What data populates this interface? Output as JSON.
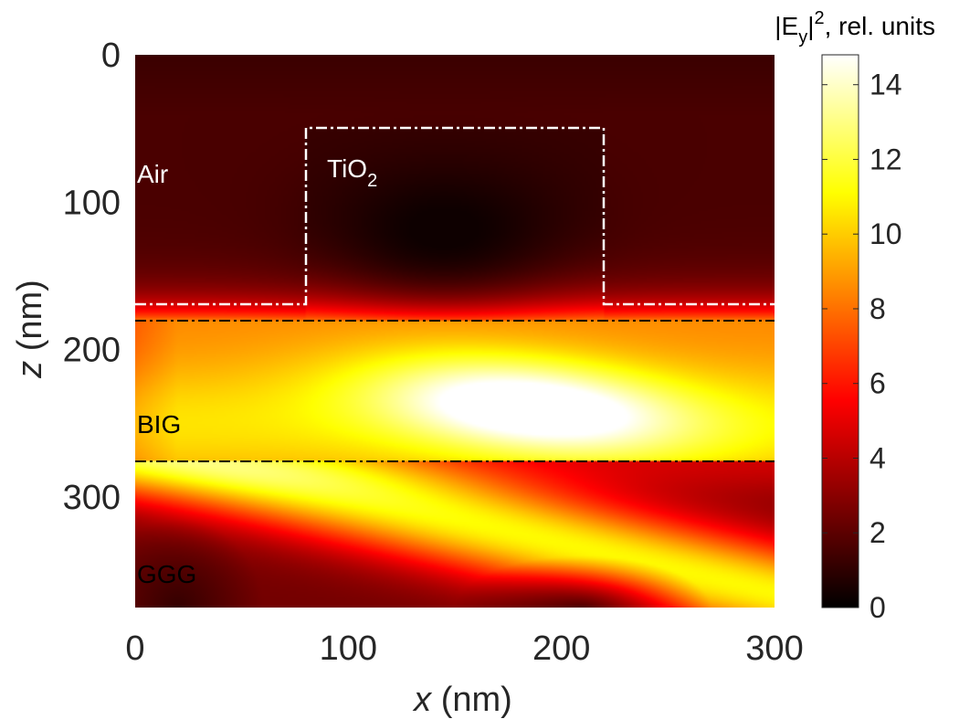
{
  "chart_data": {
    "type": "heatmap",
    "title": "",
    "xlabel": {
      "var": "x",
      "unit": " (nm)"
    },
    "ylabel": {
      "var": "z",
      "unit": " (nm)"
    },
    "xlim": [
      0,
      300
    ],
    "ylim": [
      0,
      375
    ],
    "y_reversed": true,
    "x_ticks": [
      0,
      100,
      200,
      300
    ],
    "y_ticks": [
      0,
      100,
      200,
      300
    ],
    "colorbar": {
      "label_prefix": "|E",
      "label_sub": "y",
      "label_sup": "2",
      "label_suffix": ", rel. units",
      "range": [
        0,
        14.8
      ],
      "ticks": [
        0,
        2,
        4,
        6,
        8,
        10,
        12,
        14
      ],
      "colormap": "hot"
    },
    "layers": [
      {
        "name": "Air",
        "label_text": "Air",
        "z_range": [
          0,
          170
        ],
        "label_at": [
          0,
          80
        ],
        "label_color": "#ffffff"
      },
      {
        "name": "BIG",
        "label_text": "BIG",
        "z_range": [
          180,
          275
        ],
        "label_at": [
          0,
          250
        ],
        "label_color": "#000000"
      },
      {
        "name": "GGG",
        "label_text": "GGG",
        "z_range": [
          275,
          375
        ],
        "label_at": [
          0,
          350
        ],
        "label_color": "#000000"
      }
    ],
    "ridge": {
      "label_main": "TiO",
      "label_sub": "2",
      "x_range": [
        80,
        220
      ],
      "z_range": [
        50,
        170
      ],
      "label_at": [
        90,
        80
      ]
    },
    "boundaries": [
      {
        "name": "air-tio2-outline",
        "style": "dash-dot",
        "color": "#ffffff"
      },
      {
        "name": "tio2-big-interface",
        "z": 180,
        "style": "dash-dot",
        "color": "#000000"
      },
      {
        "name": "big-ggg-interface",
        "z": 275,
        "style": "dash-dot",
        "color": "#000000"
      }
    ],
    "field_features": [
      {
        "type": "minimum",
        "x": 145,
        "z": 120,
        "value": 0.3
      },
      {
        "type": "maximum",
        "x": 185,
        "z": 245,
        "value": 14.8
      }
    ]
  }
}
